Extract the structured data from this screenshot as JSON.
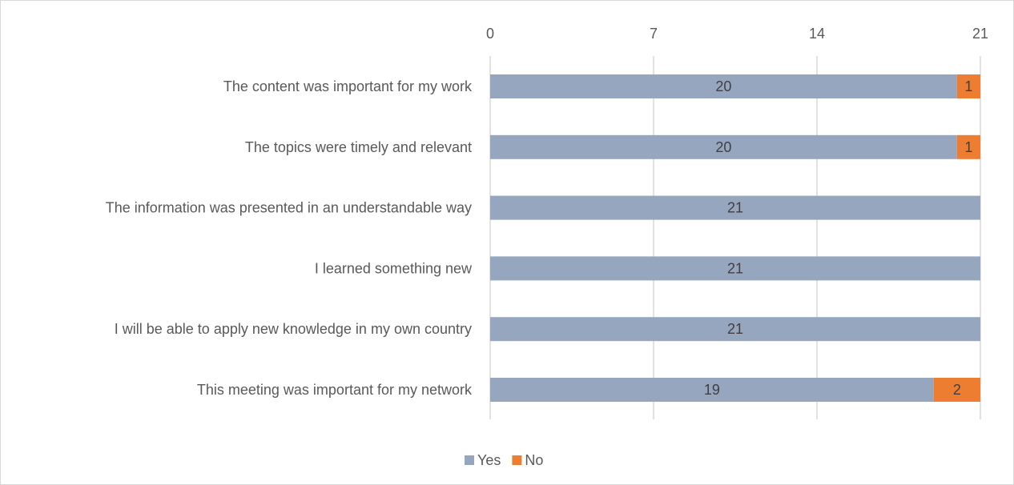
{
  "chart_data": {
    "type": "bar",
    "orientation": "horizontal",
    "stacked": true,
    "categories": [
      "The content was important for my work",
      "The topics were timely and relevant",
      "The information was presented in an understandable way",
      "I learned something new",
      "I will be able to apply new knowledge in my own country",
      "This meeting was important for my network"
    ],
    "series": [
      {
        "name": "Yes",
        "color": "#97A6BF",
        "values": [
          20,
          20,
          21,
          21,
          21,
          19
        ]
      },
      {
        "name": "No",
        "color": "#ED7D31",
        "values": [
          1,
          1,
          0,
          0,
          0,
          2
        ]
      }
    ],
    "xlim": [
      0,
      21
    ],
    "xticks": [
      0,
      7,
      14,
      21
    ],
    "xaxis_position": "top",
    "grid": true,
    "data_labels": true,
    "legend": {
      "position": "bottom",
      "entries": [
        "Yes",
        "No"
      ]
    },
    "colors": {
      "gridline": "#d9d9d9",
      "text": "#595959",
      "border": "#d9d9d9"
    }
  }
}
